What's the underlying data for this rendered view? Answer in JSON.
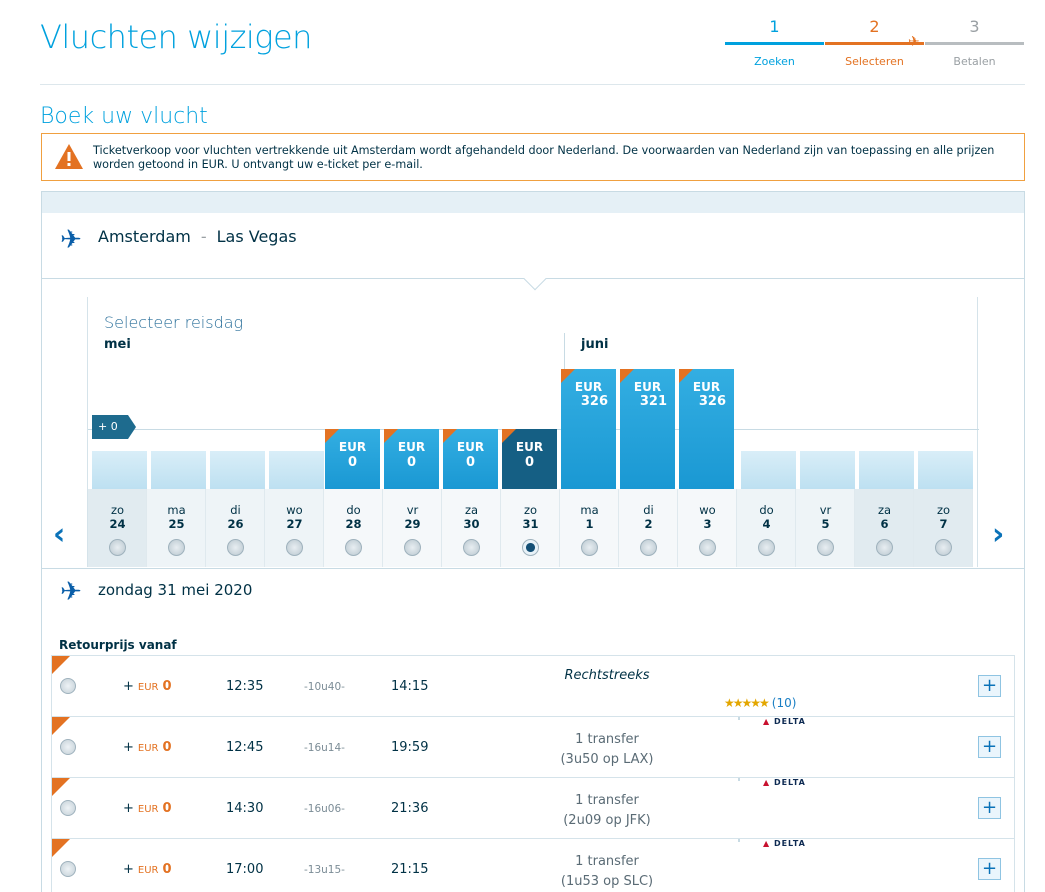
{
  "header": {
    "title": "Vluchten wijzigen"
  },
  "steps": [
    {
      "num": "1",
      "label": "Zoeken"
    },
    {
      "num": "2",
      "label": "Selecteren"
    },
    {
      "num": "3",
      "label": "Betalen"
    }
  ],
  "subtitle": "Boek uw vlucht",
  "notice": "Ticketverkoop voor vluchten vertrekkende uit Amsterdam wordt afgehandeld door Nederland. De voorwaarden van Nederland zijn van toepassing en alle prijzen worden getoond in EUR. U ontvangt uw e-ticket per e-mail.",
  "route": {
    "from": "Amsterdam",
    "sep": "-",
    "to": "Las Vegas"
  },
  "calendar": {
    "title": "Selecteer reisdag",
    "months": [
      "mei",
      "juni"
    ],
    "baseline_label": "+ 0",
    "days": [
      {
        "wd": "zo",
        "d": "24"
      },
      {
        "wd": "ma",
        "d": "25"
      },
      {
        "wd": "di",
        "d": "26"
      },
      {
        "wd": "wo",
        "d": "27"
      },
      {
        "wd": "do",
        "d": "28",
        "cur": "EUR",
        "amt": "0"
      },
      {
        "wd": "vr",
        "d": "29",
        "cur": "EUR",
        "amt": "0"
      },
      {
        "wd": "za",
        "d": "30",
        "cur": "EUR",
        "amt": "0"
      },
      {
        "wd": "zo",
        "d": "31",
        "cur": "EUR",
        "amt": "0",
        "selected": true
      },
      {
        "wd": "ma",
        "d": "1",
        "cur": "EUR",
        "amt": "326"
      },
      {
        "wd": "di",
        "d": "2",
        "cur": "EUR",
        "amt": "321"
      },
      {
        "wd": "wo",
        "d": "3",
        "cur": "EUR",
        "amt": "326"
      },
      {
        "wd": "do",
        "d": "4"
      },
      {
        "wd": "vr",
        "d": "5"
      },
      {
        "wd": "za",
        "d": "6"
      },
      {
        "wd": "zo",
        "d": "7"
      }
    ]
  },
  "selected_date": "zondag 31 mei 2020",
  "retour_label": "Retourprijs vanaf",
  "flights": [
    {
      "plus": "+",
      "cur": "EUR",
      "amt": "0",
      "dep": "12:35",
      "dur": "-10u40-",
      "arr": "14:15",
      "stop1": "Rechtstreeks",
      "stop2": "",
      "rating": "★★★★★",
      "reviews": "(10)"
    },
    {
      "plus": "+",
      "cur": "EUR",
      "amt": "0",
      "dep": "12:45",
      "dur": "-16u14-",
      "arr": "19:59",
      "stop1": "1 transfer",
      "stop2": "(3u50 op LAX)",
      "airline": "DELTA"
    },
    {
      "plus": "+",
      "cur": "EUR",
      "amt": "0",
      "dep": "14:30",
      "dur": "-16u06-",
      "arr": "21:36",
      "stop1": "1 transfer",
      "stop2": "(2u09 op JFK)",
      "airline": "DELTA"
    },
    {
      "plus": "+",
      "cur": "EUR",
      "amt": "0",
      "dep": "17:00",
      "dur": "-13u15-",
      "arr": "21:15",
      "stop1": "1 transfer",
      "stop2": "(1u53 op SLC)",
      "airline": "DELTA"
    }
  ]
}
